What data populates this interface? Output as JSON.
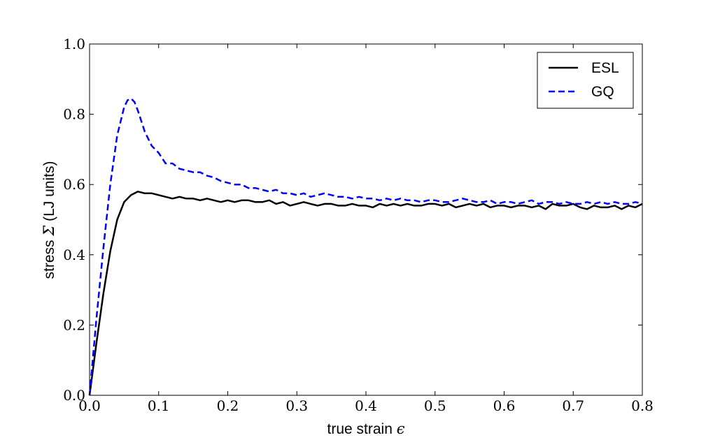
{
  "chart_data": {
    "type": "line",
    "xlabel": "true strain",
    "xlabel_symbol": "ϵ",
    "ylabel": "stress",
    "ylabel_symbol": "Σ",
    "ylabel_suffix": "(LJ units)",
    "xlim": [
      0.0,
      0.8
    ],
    "ylim": [
      0.0,
      1.0
    ],
    "xticks": [
      "0.0",
      "0.1",
      "0.2",
      "0.3",
      "0.4",
      "0.5",
      "0.6",
      "0.7",
      "0.8"
    ],
    "yticks": [
      "0.0",
      "0.2",
      "0.4",
      "0.6",
      "0.8",
      "1.0"
    ],
    "grid": false,
    "legend_position": "top-right",
    "series": [
      {
        "name": "ESL",
        "color": "#000000",
        "dash": "solid",
        "x": [
          0.0,
          0.01,
          0.02,
          0.03,
          0.04,
          0.05,
          0.06,
          0.07,
          0.08,
          0.09,
          0.1,
          0.11,
          0.12,
          0.13,
          0.14,
          0.15,
          0.16,
          0.17,
          0.18,
          0.19,
          0.2,
          0.21,
          0.22,
          0.23,
          0.24,
          0.25,
          0.26,
          0.27,
          0.28,
          0.29,
          0.3,
          0.31,
          0.32,
          0.33,
          0.34,
          0.35,
          0.36,
          0.37,
          0.38,
          0.39,
          0.4,
          0.41,
          0.42,
          0.43,
          0.44,
          0.45,
          0.46,
          0.47,
          0.48,
          0.49,
          0.5,
          0.51,
          0.52,
          0.53,
          0.54,
          0.55,
          0.56,
          0.57,
          0.58,
          0.59,
          0.6,
          0.61,
          0.62,
          0.63,
          0.64,
          0.65,
          0.66,
          0.67,
          0.68,
          0.69,
          0.7,
          0.71,
          0.72,
          0.73,
          0.74,
          0.75,
          0.76,
          0.77,
          0.78,
          0.79,
          0.8
        ],
        "y": [
          0.0,
          0.15,
          0.29,
          0.41,
          0.5,
          0.55,
          0.57,
          0.58,
          0.575,
          0.575,
          0.57,
          0.565,
          0.56,
          0.565,
          0.56,
          0.56,
          0.555,
          0.56,
          0.555,
          0.55,
          0.555,
          0.55,
          0.555,
          0.555,
          0.55,
          0.55,
          0.555,
          0.545,
          0.55,
          0.54,
          0.545,
          0.55,
          0.545,
          0.54,
          0.545,
          0.545,
          0.54,
          0.54,
          0.545,
          0.54,
          0.54,
          0.535,
          0.545,
          0.54,
          0.545,
          0.54,
          0.545,
          0.54,
          0.54,
          0.545,
          0.545,
          0.54,
          0.545,
          0.535,
          0.54,
          0.545,
          0.54,
          0.545,
          0.535,
          0.54,
          0.54,
          0.535,
          0.54,
          0.54,
          0.535,
          0.54,
          0.53,
          0.545,
          0.54,
          0.54,
          0.545,
          0.535,
          0.53,
          0.54,
          0.535,
          0.535,
          0.54,
          0.53,
          0.54,
          0.535,
          0.545
        ]
      },
      {
        "name": "GQ",
        "color": "#0000ff",
        "dash": "dashed",
        "x": [
          0.0,
          0.01,
          0.02,
          0.03,
          0.04,
          0.05,
          0.055,
          0.06,
          0.065,
          0.07,
          0.08,
          0.09,
          0.1,
          0.11,
          0.12,
          0.13,
          0.14,
          0.15,
          0.16,
          0.17,
          0.18,
          0.19,
          0.2,
          0.21,
          0.22,
          0.23,
          0.24,
          0.25,
          0.26,
          0.27,
          0.28,
          0.29,
          0.3,
          0.31,
          0.32,
          0.33,
          0.34,
          0.35,
          0.36,
          0.37,
          0.38,
          0.39,
          0.4,
          0.41,
          0.42,
          0.43,
          0.44,
          0.45,
          0.46,
          0.47,
          0.48,
          0.49,
          0.5,
          0.51,
          0.52,
          0.53,
          0.54,
          0.55,
          0.56,
          0.57,
          0.58,
          0.59,
          0.6,
          0.61,
          0.62,
          0.63,
          0.64,
          0.65,
          0.66,
          0.67,
          0.68,
          0.69,
          0.7,
          0.71,
          0.72,
          0.73,
          0.74,
          0.75,
          0.76,
          0.77,
          0.78,
          0.79,
          0.8
        ],
        "y": [
          0.0,
          0.22,
          0.42,
          0.6,
          0.74,
          0.82,
          0.84,
          0.845,
          0.835,
          0.81,
          0.75,
          0.71,
          0.69,
          0.66,
          0.66,
          0.645,
          0.64,
          0.635,
          0.635,
          0.625,
          0.62,
          0.61,
          0.605,
          0.6,
          0.6,
          0.59,
          0.59,
          0.585,
          0.58,
          0.585,
          0.575,
          0.575,
          0.57,
          0.575,
          0.565,
          0.57,
          0.575,
          0.57,
          0.565,
          0.565,
          0.56,
          0.565,
          0.56,
          0.56,
          0.555,
          0.56,
          0.555,
          0.56,
          0.555,
          0.555,
          0.55,
          0.555,
          0.555,
          0.55,
          0.55,
          0.555,
          0.56,
          0.555,
          0.55,
          0.55,
          0.555,
          0.545,
          0.55,
          0.55,
          0.545,
          0.55,
          0.555,
          0.545,
          0.55,
          0.55,
          0.545,
          0.55,
          0.545,
          0.545,
          0.55,
          0.545,
          0.55,
          0.545,
          0.55,
          0.545,
          0.545,
          0.55,
          0.545
        ]
      }
    ]
  }
}
